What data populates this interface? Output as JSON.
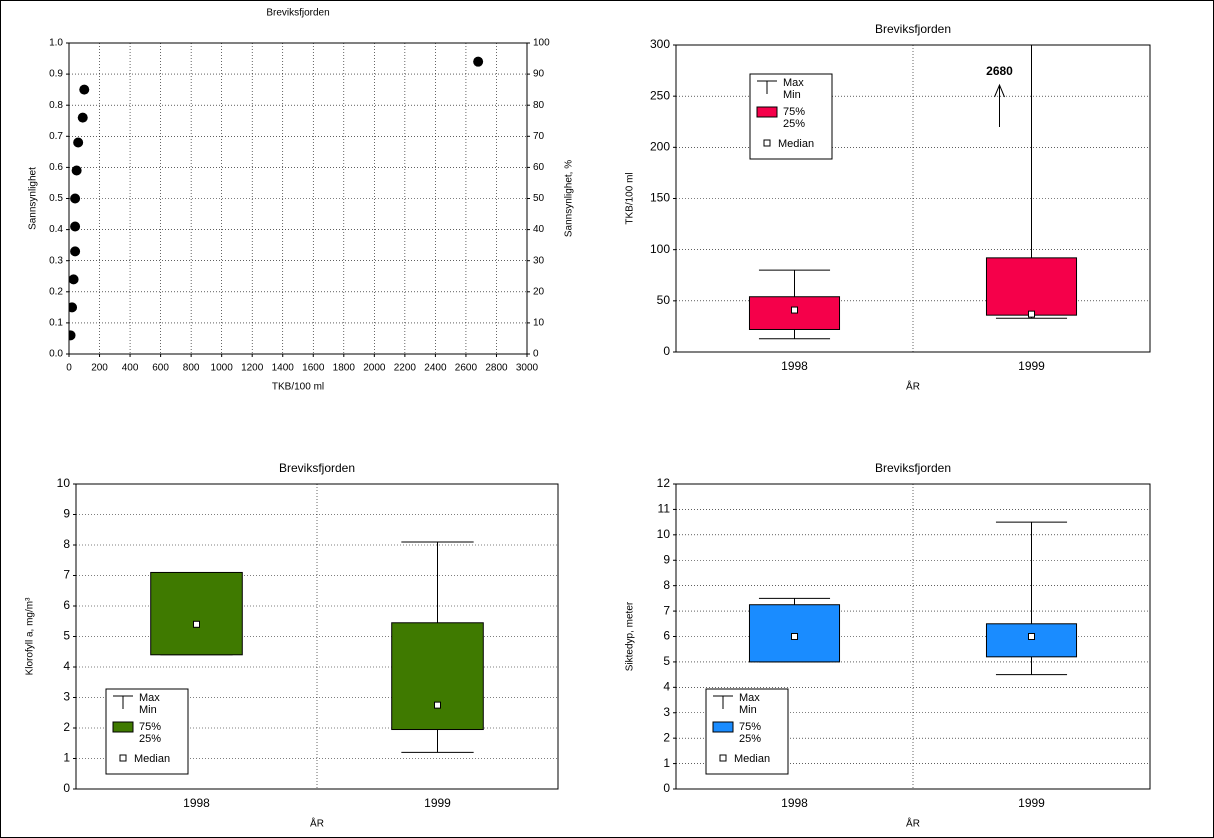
{
  "chart_data": [
    {
      "type": "scatter",
      "title": "Breviksfjorden",
      "xlabel": "TKB/100 ml",
      "ylabel": "Sannsynlighet",
      "y2label": "Sannsynlighet, %",
      "x": [
        10,
        20,
        30,
        40,
        40,
        40,
        50,
        60,
        90,
        100,
        2680
      ],
      "y": [
        0.06,
        0.15,
        0.24,
        0.33,
        0.41,
        0.5,
        0.59,
        0.68,
        0.76,
        0.85,
        0.94
      ],
      "color": "#000000",
      "xlim": [
        0,
        3000
      ],
      "xticks": [
        0,
        200,
        400,
        600,
        800,
        1000,
        1200,
        1400,
        1600,
        1800,
        2000,
        2200,
        2400,
        2600,
        2800,
        3000
      ],
      "ylim": [
        0,
        1
      ],
      "yticks": [
        {
          "value": 0,
          "label": "0.0"
        },
        0.1,
        0.2,
        0.3,
        0.4,
        0.5,
        0.6,
        0.7,
        0.8,
        0.9,
        {
          "value": 1,
          "label": "1.0"
        }
      ],
      "y2lim": [
        0,
        100
      ],
      "y2ticks": [
        0,
        10,
        20,
        30,
        40,
        50,
        60,
        70,
        80,
        90,
        100
      ],
      "grid": true
    },
    {
      "type": "box",
      "title": "Breviksfjorden",
      "xlabel": "ÅR",
      "ylabel": "TKB/100 ml",
      "categories": [
        "1998",
        "1999"
      ],
      "boxes": {
        "min": [
          13,
          33
        ],
        "q1": [
          22,
          36
        ],
        "median": [
          41,
          37
        ],
        "q3": [
          54,
          92
        ],
        "max": [
          80,
          2680
        ]
      },
      "color": "#f5004a",
      "ylim": [
        0,
        300
      ],
      "yticks": [
        0,
        50,
        100,
        150,
        200,
        250,
        300
      ],
      "grid": true,
      "annotation": "2680",
      "legend": "upper left",
      "legend_labels": [
        "Max",
        "Min",
        "75%",
        "25%",
        "Median"
      ]
    },
    {
      "type": "box",
      "title": "Breviksfjorden",
      "xlabel": "ÅR",
      "ylabel": "Klorofyll a, mg/m³",
      "categories": [
        "1998",
        "1999"
      ],
      "boxes": {
        "min": [
          4.4,
          1.2
        ],
        "q1": [
          4.4,
          1.95
        ],
        "median": [
          5.4,
          2.75
        ],
        "q3": [
          7.1,
          5.45
        ],
        "max": [
          7.1,
          8.1
        ]
      },
      "color": "#3f7a00",
      "ylim": [
        0,
        10
      ],
      "yticks": [
        0,
        1,
        2,
        3,
        4,
        5,
        6,
        7,
        8,
        9,
        10
      ],
      "grid": true,
      "legend": "lower left",
      "legend_labels": [
        "Max",
        "Min",
        "75%",
        "25%",
        "Median"
      ]
    },
    {
      "type": "box",
      "title": "Breviksfjorden",
      "xlabel": "ÅR",
      "ylabel": "Siktedyp, meter",
      "categories": [
        "1998",
        "1999"
      ],
      "boxes": {
        "min": [
          5.0,
          4.5
        ],
        "q1": [
          5.0,
          5.2
        ],
        "median": [
          6.0,
          6.0
        ],
        "q3": [
          7.25,
          6.5
        ],
        "max": [
          7.5,
          10.5
        ]
      },
      "color": "#1a8cff",
      "ylim": [
        0,
        12
      ],
      "yticks": [
        0,
        1,
        2,
        3,
        4,
        5,
        6,
        7,
        8,
        9,
        10,
        11,
        12
      ],
      "grid": true,
      "legend": "lower left",
      "legend_labels": [
        "Max",
        "Min",
        "75%",
        "25%",
        "Median"
      ]
    }
  ]
}
